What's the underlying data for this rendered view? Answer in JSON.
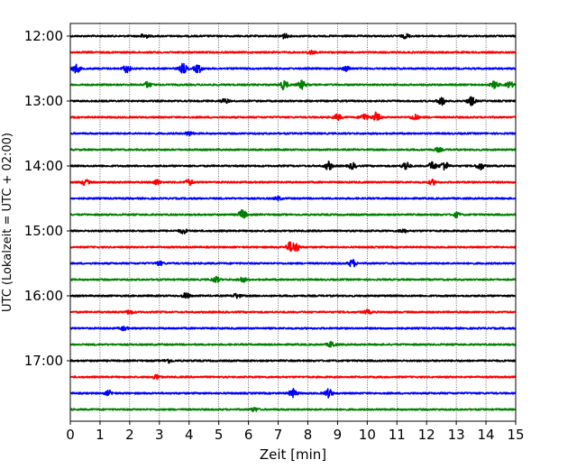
{
  "chart_data": {
    "type": "line",
    "title": "",
    "xlabel": "Zeit  [min]",
    "ylabel": "UTC (Lokalzeit = UTC + 02:00)",
    "xlim": [
      0,
      15
    ],
    "x_ticks": [
      "0",
      "1",
      "2",
      "3",
      "4",
      "5",
      "6",
      "7",
      "8",
      "9",
      "10",
      "11",
      "12",
      "13",
      "14",
      "15"
    ],
    "y_ticks": [
      "12:00",
      "13:00",
      "14:00",
      "15:00",
      "16:00",
      "17:00"
    ],
    "grid": "vertical dotted lines at every minute",
    "legend": "none",
    "trace_interval_minutes": 15,
    "trace_colors": [
      "#000000",
      "#ff0000",
      "#0000ff",
      "#008000"
    ],
    "traces": [
      {
        "start": "12:00",
        "color": "#000000",
        "bursts": [
          {
            "t": 2.5,
            "amp": 0.5
          },
          {
            "t": 7.2,
            "amp": 0.5
          },
          {
            "t": 11.3,
            "amp": 0.45
          }
        ]
      },
      {
        "start": "12:15",
        "color": "#ff0000",
        "bursts": [
          {
            "t": 8.1,
            "amp": 0.4
          }
        ]
      },
      {
        "start": "12:30",
        "color": "#0000ff",
        "bursts": [
          {
            "t": 0.2,
            "amp": 0.9
          },
          {
            "t": 1.9,
            "amp": 0.8
          },
          {
            "t": 3.8,
            "amp": 1.0
          },
          {
            "t": 4.3,
            "amp": 0.9
          },
          {
            "t": 9.3,
            "amp": 0.5
          }
        ]
      },
      {
        "start": "12:45",
        "color": "#008000",
        "bursts": [
          {
            "t": 2.6,
            "amp": 0.6
          },
          {
            "t": 7.2,
            "amp": 1.0
          },
          {
            "t": 7.8,
            "amp": 0.9
          },
          {
            "t": 14.3,
            "amp": 0.8
          },
          {
            "t": 14.8,
            "amp": 0.6
          }
        ]
      },
      {
        "start": "13:00",
        "color": "#000000",
        "bursts": [
          {
            "t": 5.2,
            "amp": 0.5
          },
          {
            "t": 12.5,
            "amp": 0.9
          },
          {
            "t": 13.5,
            "amp": 0.9
          }
        ]
      },
      {
        "start": "13:15",
        "color": "#ff0000",
        "bursts": [
          {
            "t": 9.0,
            "amp": 0.6
          },
          {
            "t": 9.9,
            "amp": 0.8
          },
          {
            "t": 10.3,
            "amp": 1.0
          },
          {
            "t": 11.6,
            "amp": 0.6
          }
        ]
      },
      {
        "start": "13:30",
        "color": "#0000ff",
        "bursts": [
          {
            "t": 4.0,
            "amp": 0.4
          }
        ]
      },
      {
        "start": "13:45",
        "color": "#008000",
        "bursts": [
          {
            "t": 12.4,
            "amp": 0.4
          }
        ]
      },
      {
        "start": "14:00",
        "color": "#000000",
        "bursts": [
          {
            "t": 8.7,
            "amp": 0.9
          },
          {
            "t": 9.5,
            "amp": 0.6
          },
          {
            "t": 11.3,
            "amp": 0.9
          },
          {
            "t": 12.2,
            "amp": 0.9
          },
          {
            "t": 12.6,
            "amp": 1.0
          },
          {
            "t": 13.8,
            "amp": 0.8
          }
        ]
      },
      {
        "start": "14:15",
        "color": "#ff0000",
        "bursts": [
          {
            "t": 0.5,
            "amp": 0.6
          },
          {
            "t": 2.9,
            "amp": 0.5
          },
          {
            "t": 4.0,
            "amp": 0.6
          },
          {
            "t": 12.2,
            "amp": 0.5
          }
        ]
      },
      {
        "start": "14:30",
        "color": "#0000ff",
        "bursts": [
          {
            "t": 7.0,
            "amp": 0.35
          }
        ]
      },
      {
        "start": "14:45",
        "color": "#008000",
        "bursts": [
          {
            "t": 5.8,
            "amp": 1.0
          },
          {
            "t": 13.0,
            "amp": 0.5
          }
        ]
      },
      {
        "start": "15:00",
        "color": "#000000",
        "bursts": [
          {
            "t": 3.8,
            "amp": 0.5
          },
          {
            "t": 11.2,
            "amp": 0.4
          }
        ]
      },
      {
        "start": "15:15",
        "color": "#ff0000",
        "bursts": [
          {
            "t": 7.4,
            "amp": 1.0
          },
          {
            "t": 7.6,
            "amp": 0.9
          }
        ]
      },
      {
        "start": "15:30",
        "color": "#0000ff",
        "bursts": [
          {
            "t": 9.5,
            "amp": 0.8
          },
          {
            "t": 3.0,
            "amp": 0.4
          }
        ]
      },
      {
        "start": "15:45",
        "color": "#008000",
        "bursts": [
          {
            "t": 4.9,
            "amp": 0.6
          },
          {
            "t": 5.8,
            "amp": 0.5
          }
        ]
      },
      {
        "start": "16:00",
        "color": "#000000",
        "bursts": [
          {
            "t": 3.9,
            "amp": 0.6
          },
          {
            "t": 5.6,
            "amp": 0.5
          }
        ]
      },
      {
        "start": "16:15",
        "color": "#ff0000",
        "bursts": [
          {
            "t": 2.0,
            "amp": 0.4
          },
          {
            "t": 10.0,
            "amp": 0.4
          }
        ]
      },
      {
        "start": "16:30",
        "color": "#0000ff",
        "bursts": [
          {
            "t": 1.8,
            "amp": 0.4
          }
        ]
      },
      {
        "start": "16:45",
        "color": "#008000",
        "bursts": [
          {
            "t": 8.8,
            "amp": 0.6
          }
        ]
      },
      {
        "start": "17:00",
        "color": "#000000",
        "bursts": [
          {
            "t": 3.3,
            "amp": 0.4
          }
        ]
      },
      {
        "start": "17:15",
        "color": "#ff0000",
        "bursts": [
          {
            "t": 2.9,
            "amp": 0.5
          }
        ]
      },
      {
        "start": "17:30",
        "color": "#0000ff",
        "bursts": [
          {
            "t": 1.3,
            "amp": 0.5
          },
          {
            "t": 7.5,
            "amp": 0.9
          },
          {
            "t": 8.7,
            "amp": 0.9
          }
        ]
      },
      {
        "start": "17:45",
        "color": "#008000",
        "bursts": [
          {
            "t": 6.2,
            "amp": 0.4
          }
        ]
      }
    ]
  }
}
